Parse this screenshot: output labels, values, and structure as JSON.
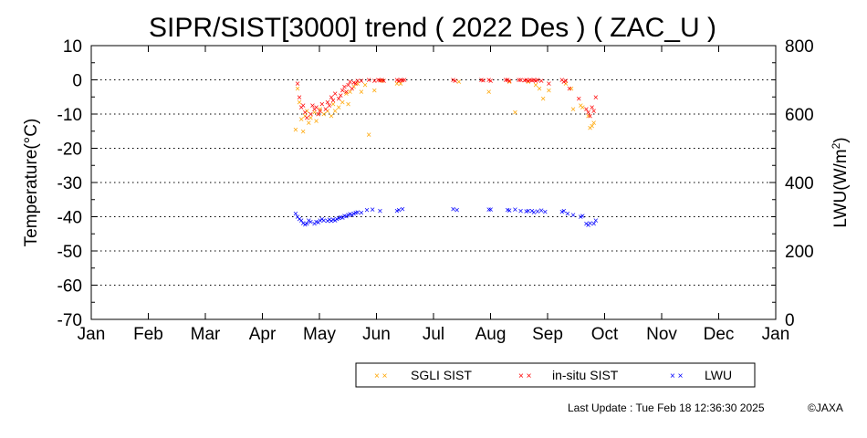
{
  "chart_data": {
    "type": "scatter",
    "title": "SIPR/SIST[3000] trend ( 2022 Des ) ( ZAC_U )",
    "ylabel": "Temperature(°C)",
    "y2label_base": "LWU(W/m",
    "y2label_sup": "2",
    "y2label_end": ")",
    "ylim": [
      -70,
      10
    ],
    "y2lim": [
      0,
      800
    ],
    "yticks": [
      "10",
      "0",
      "-10",
      "-20",
      "-30",
      "-40",
      "-50",
      "-60",
      "-70"
    ],
    "y2ticks": [
      "800",
      "600",
      "400",
      "200",
      "0"
    ],
    "months": [
      "Jan",
      "Feb",
      "Mar",
      "Apr",
      "May",
      "Jun",
      "Jul",
      "Aug",
      "Sep",
      "Oct",
      "Nov",
      "Dec",
      "Jan"
    ],
    "grid": "dotted horizontal",
    "legend_position": "bottom",
    "marker": "×",
    "series": [
      {
        "name": "SGLI SIST",
        "color": "#ffa500",
        "axis": "left",
        "points": [
          [
            "2022-04-20",
            -14.5
          ],
          [
            "2022-04-21",
            -2.5
          ],
          [
            "2022-04-22",
            -6.5
          ],
          [
            "2022-04-23",
            -11.5
          ],
          [
            "2022-04-24",
            -15.0
          ],
          [
            "2022-04-25",
            -10.5
          ],
          [
            "2022-04-26",
            -9.0
          ],
          [
            "2022-04-27",
            -12.5
          ],
          [
            "2022-04-28",
            -11.0
          ],
          [
            "2022-04-30",
            -9.5
          ],
          [
            "2022-05-01",
            -12.0
          ],
          [
            "2022-05-02",
            -10.0
          ],
          [
            "2022-05-03",
            -8.5
          ],
          [
            "2022-05-05",
            -10.0
          ],
          [
            "2022-05-07",
            -9.0
          ],
          [
            "2022-05-09",
            -10.5
          ],
          [
            "2022-05-10",
            -7.0
          ],
          [
            "2022-05-11",
            -9.0
          ],
          [
            "2022-05-13",
            -8.0
          ],
          [
            "2022-05-15",
            -6.5
          ],
          [
            "2022-05-17",
            -4.0
          ],
          [
            "2022-05-18",
            -7.0
          ],
          [
            "2022-05-19",
            -3.5
          ],
          [
            "2022-05-21",
            -2.0
          ],
          [
            "2022-05-23",
            -1.0
          ],
          [
            "2022-05-25",
            -3.5
          ],
          [
            "2022-05-27",
            -1.5
          ],
          [
            "2022-05-29",
            -16.0
          ],
          [
            "2022-06-01",
            -3.0
          ],
          [
            "2022-06-05",
            -0.3
          ],
          [
            "2022-06-13",
            -1.0
          ],
          [
            "2022-06-15",
            -1.0
          ],
          [
            "2022-07-16",
            -0.5
          ],
          [
            "2022-08-01",
            -3.5
          ],
          [
            "2022-08-12",
            -0.5
          ],
          [
            "2022-08-15",
            -9.5
          ],
          [
            "2022-08-22",
            -0.5
          ],
          [
            "2022-08-26",
            -1.5
          ],
          [
            "2022-08-28",
            -2.5
          ],
          [
            "2022-08-30",
            -5.5
          ],
          [
            "2022-09-02",
            -3.0
          ],
          [
            "2022-09-11",
            -1.0
          ],
          [
            "2022-09-14",
            -2.5
          ],
          [
            "2022-09-15",
            -8.5
          ],
          [
            "2022-09-19",
            -7.5
          ],
          [
            "2022-09-20",
            -8.0
          ],
          [
            "2022-09-23",
            -10.5
          ],
          [
            "2022-09-24",
            -14.0
          ],
          [
            "2022-09-25",
            -13.5
          ],
          [
            "2022-09-26",
            -12.5
          ]
        ]
      },
      {
        "name": "in-situ SIST",
        "color": "#ff0000",
        "axis": "left",
        "points": [
          [
            "2022-04-21",
            -1.0
          ],
          [
            "2022-04-22",
            -5.0
          ],
          [
            "2022-04-23",
            -8.0
          ],
          [
            "2022-04-24",
            -7.5
          ],
          [
            "2022-04-25",
            -9.5
          ],
          [
            "2022-04-26",
            -11.0
          ],
          [
            "2022-04-28",
            -10.0
          ],
          [
            "2022-04-29",
            -7.5
          ],
          [
            "2022-04-30",
            -8.5
          ],
          [
            "2022-05-01",
            -8.0
          ],
          [
            "2022-05-02",
            -10.0
          ],
          [
            "2022-05-03",
            -9.0
          ],
          [
            "2022-05-04",
            -7.0
          ],
          [
            "2022-05-06",
            -8.5
          ],
          [
            "2022-05-07",
            -6.5
          ],
          [
            "2022-05-08",
            -7.5
          ],
          [
            "2022-05-09",
            -5.0
          ],
          [
            "2022-05-10",
            -6.0
          ],
          [
            "2022-05-11",
            -4.0
          ],
          [
            "2022-05-13",
            -5.5
          ],
          [
            "2022-05-14",
            -4.5
          ],
          [
            "2022-05-15",
            -3.0
          ],
          [
            "2022-05-16",
            -2.0
          ],
          [
            "2022-05-17",
            -3.5
          ],
          [
            "2022-05-18",
            -1.5
          ],
          [
            "2022-05-19",
            -0.5
          ],
          [
            "2022-05-20",
            -2.5
          ],
          [
            "2022-05-21",
            -0.8
          ],
          [
            "2022-05-22",
            -1.0
          ],
          [
            "2022-05-23",
            -0.3
          ],
          [
            "2022-05-25",
            -0.2
          ],
          [
            "2022-05-29",
            0.0
          ],
          [
            "2022-06-01",
            -0.2
          ],
          [
            "2022-06-03",
            0.0
          ],
          [
            "2022-06-04",
            -0.1
          ],
          [
            "2022-06-05",
            0.0
          ],
          [
            "2022-06-06",
            -0.2
          ],
          [
            "2022-06-13",
            0.0
          ],
          [
            "2022-06-14",
            -0.3
          ],
          [
            "2022-06-15",
            0.0
          ],
          [
            "2022-06-16",
            -0.1
          ],
          [
            "2022-06-17",
            0.0
          ],
          [
            "2022-07-13",
            0.0
          ],
          [
            "2022-07-14",
            -0.2
          ],
          [
            "2022-07-28",
            0.0
          ],
          [
            "2022-07-29",
            -0.1
          ],
          [
            "2022-08-01",
            0.0
          ],
          [
            "2022-08-02",
            -0.3
          ],
          [
            "2022-08-10",
            0.0
          ],
          [
            "2022-08-11",
            0.0
          ],
          [
            "2022-08-12",
            -0.2
          ],
          [
            "2022-08-17",
            0.0
          ],
          [
            "2022-08-18",
            0.0
          ],
          [
            "2022-08-20",
            -0.1
          ],
          [
            "2022-08-21",
            0.0
          ],
          [
            "2022-08-22",
            -0.2
          ],
          [
            "2022-08-23",
            0.0
          ],
          [
            "2022-08-24",
            -0.1
          ],
          [
            "2022-08-25",
            0.0
          ],
          [
            "2022-08-26",
            -0.3
          ],
          [
            "2022-08-27",
            0.0
          ],
          [
            "2022-08-29",
            -0.2
          ],
          [
            "2022-09-02",
            -1.0
          ],
          [
            "2022-09-09",
            0.0
          ],
          [
            "2022-09-10",
            -0.5
          ],
          [
            "2022-09-11",
            -0.2
          ],
          [
            "2022-09-13",
            -2.5
          ],
          [
            "2022-09-18",
            -5.5
          ],
          [
            "2022-09-22",
            -8.5
          ],
          [
            "2022-09-23",
            -9.5
          ],
          [
            "2022-09-24",
            -10.5
          ],
          [
            "2022-09-25",
            -8.0
          ],
          [
            "2022-09-26",
            -9.0
          ],
          [
            "2022-09-27",
            -5.0
          ]
        ]
      },
      {
        "name": "LWU",
        "color": "#0000ff",
        "axis": "right",
        "points": [
          [
            "2022-04-20",
            309
          ],
          [
            "2022-04-21",
            300
          ],
          [
            "2022-04-22",
            294
          ],
          [
            "2022-04-23",
            289
          ],
          [
            "2022-04-24",
            281
          ],
          [
            "2022-04-25",
            277
          ],
          [
            "2022-04-26",
            280
          ],
          [
            "2022-04-27",
            289
          ],
          [
            "2022-04-28",
            285
          ],
          [
            "2022-04-30",
            280
          ],
          [
            "2022-05-01",
            286
          ],
          [
            "2022-05-02",
            284
          ],
          [
            "2022-05-03",
            289
          ],
          [
            "2022-05-04",
            293
          ],
          [
            "2022-05-05",
            289
          ],
          [
            "2022-05-07",
            288
          ],
          [
            "2022-05-08",
            292
          ],
          [
            "2022-05-09",
            288
          ],
          [
            "2022-05-10",
            292
          ],
          [
            "2022-05-11",
            290
          ],
          [
            "2022-05-12",
            294
          ],
          [
            "2022-05-13",
            296
          ],
          [
            "2022-05-14",
            299
          ],
          [
            "2022-05-15",
            297
          ],
          [
            "2022-05-16",
            303
          ],
          [
            "2022-05-17",
            301
          ],
          [
            "2022-05-18",
            306
          ],
          [
            "2022-05-19",
            308
          ],
          [
            "2022-05-20",
            305
          ],
          [
            "2022-05-21",
            310
          ],
          [
            "2022-05-22",
            312
          ],
          [
            "2022-05-23",
            314
          ],
          [
            "2022-05-25",
            312
          ],
          [
            "2022-05-28",
            320
          ],
          [
            "2022-05-31",
            322
          ],
          [
            "2022-06-04",
            318
          ],
          [
            "2022-06-13",
            317
          ],
          [
            "2022-06-14",
            320
          ],
          [
            "2022-06-16",
            323
          ],
          [
            "2022-07-13",
            323
          ],
          [
            "2022-07-15",
            320
          ],
          [
            "2022-08-01",
            322
          ],
          [
            "2022-08-02",
            321
          ],
          [
            "2022-08-11",
            320
          ],
          [
            "2022-08-12",
            319
          ],
          [
            "2022-08-15",
            321
          ],
          [
            "2022-08-18",
            317
          ],
          [
            "2022-08-21",
            316
          ],
          [
            "2022-08-22",
            318
          ],
          [
            "2022-08-24",
            317
          ],
          [
            "2022-08-25",
            314
          ],
          [
            "2022-08-27",
            316
          ],
          [
            "2022-08-29",
            319
          ],
          [
            "2022-08-31",
            315
          ],
          [
            "2022-09-09",
            315
          ],
          [
            "2022-09-10",
            318
          ],
          [
            "2022-09-12",
            310
          ],
          [
            "2022-09-15",
            306
          ],
          [
            "2022-09-19",
            300
          ],
          [
            "2022-09-20",
            303
          ],
          [
            "2022-09-22",
            280
          ],
          [
            "2022-09-23",
            276
          ],
          [
            "2022-09-24",
            282
          ],
          [
            "2022-09-26",
            280
          ],
          [
            "2022-09-27",
            290
          ]
        ]
      }
    ]
  },
  "legend": {
    "items": [
      "SGLI SIST",
      "in-situ SIST",
      "LWU"
    ]
  },
  "footer": {
    "last_update": "Last Update : Tue Feb 18 12:36:30 2025",
    "copyright": "©JAXA"
  }
}
